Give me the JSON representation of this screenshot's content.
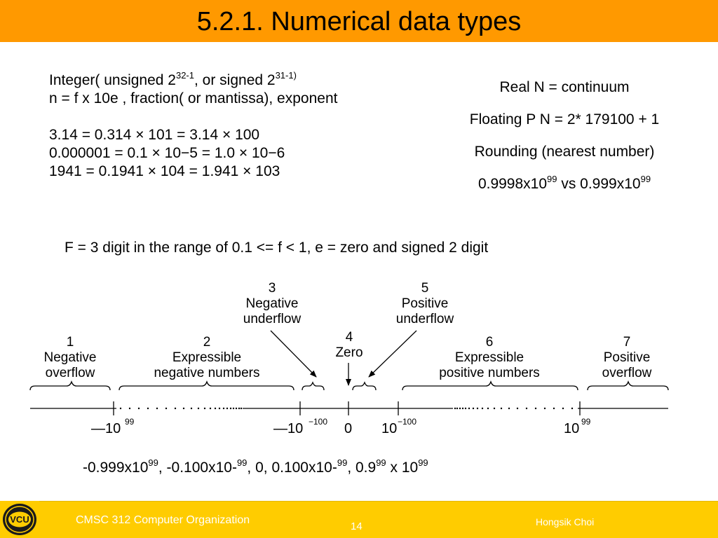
{
  "title": "5.2.1. Numerical data types",
  "left_block": {
    "line1_pre": "Integer( unsigned 2",
    "line1_sup1": "32-1",
    "line1_mid": ", or signed 2",
    "line1_sup2": "31-1)",
    "line2": "n = f x 10e , fraction( or mantissa), exponent",
    "line3": "3.14 = 0.314 × 101 = 3.14 × 100",
    "line4": "0.000001 = 0.1 × 10−5 = 1.0 × 10−6",
    "line5": "1941 = 0.1941 × 104 = 1.941 × 103"
  },
  "right_block": {
    "line1": "Real N = continuum",
    "line2": "Floating P N = 2* 179100 + 1",
    "line3": "Rounding (nearest number)",
    "line4_a": "0.9998x10",
    "line4_sup1": "99",
    "line4_b": " vs 0.999x10",
    "line4_sup2": "99"
  },
  "range_text": "F = 3 digit in the range of 0.1 <= f < 1, e = zero and signed 2 digit",
  "diagram": {
    "regions": [
      {
        "num": "1",
        "line1": "Negative",
        "line2": "overflow"
      },
      {
        "num": "2",
        "line1": "Expressible",
        "line2": "negative numbers"
      },
      {
        "num": "3",
        "line1": "Negative",
        "line2": "underflow"
      },
      {
        "num": "4",
        "line1": "Zero",
        "line2": ""
      },
      {
        "num": "5",
        "line1": "Positive",
        "line2": "underflow"
      },
      {
        "num": "6",
        "line1": "Expressible",
        "line2": "positive numbers"
      },
      {
        "num": "7",
        "line1": "Positive",
        "line2": "overflow"
      }
    ],
    "ticks": {
      "neg_large": "—10",
      "neg_large_exp": "99",
      "neg_small": "—10",
      "neg_small_exp": "−100",
      "zero": "0",
      "pos_small": "10",
      "pos_small_exp": "−100",
      "pos_large": "10",
      "pos_large_exp": "99"
    }
  },
  "values_line": {
    "p1": "-0.999x10",
    "s1": "99",
    "p2": ", -0.100x10-",
    "s2": "99",
    "p3": ", 0, 0.100x10-",
    "s3": "99",
    "p4": ", 0.9",
    "s4": "99",
    "p5": " x 10",
    "s5": "99"
  },
  "footer": {
    "logo_text": "VCU",
    "course": "CMSC 312 Computer Organization",
    "page": "14",
    "author": "Hongsik Choi"
  },
  "colors": {
    "title_bar": "#ff9900",
    "footer_bar": "#ffcc00",
    "footer_text": "#ffffff"
  }
}
